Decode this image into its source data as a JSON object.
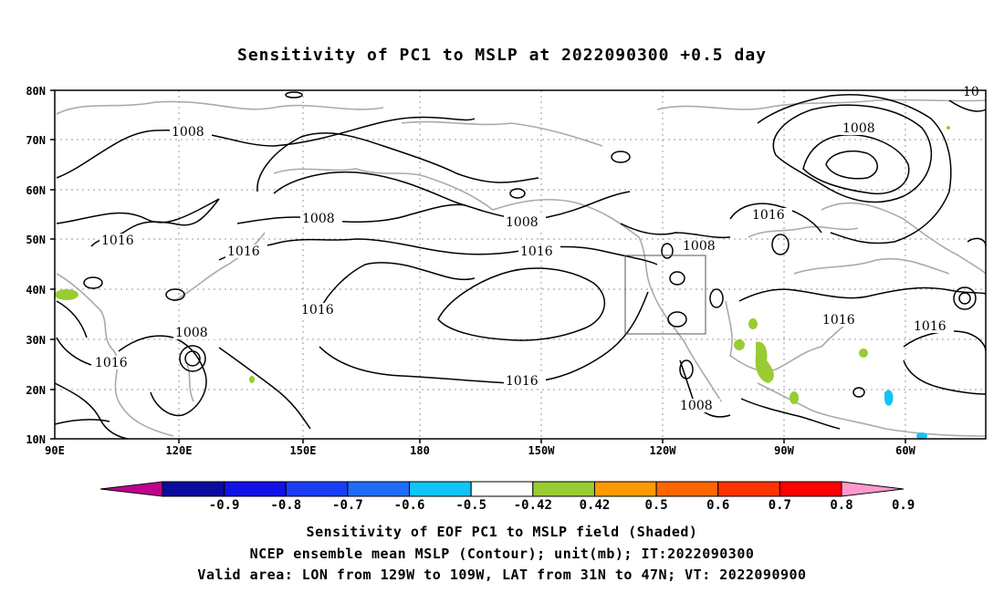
{
  "title": "Sensitivity of PC1 to MSLP at 2022090300 +0.5 day",
  "lat_labels": [
    "80N",
    "70N",
    "60N",
    "50N",
    "40N",
    "30N",
    "20N",
    "10N"
  ],
  "lon_labels": [
    "90E",
    "120E",
    "150E",
    "180",
    "150W",
    "120W",
    "90W",
    "60W"
  ],
  "contour_labels": [
    "1008",
    "1008",
    "1008",
    "1016",
    "1016",
    "1008",
    "1016",
    "1016",
    "1008",
    "1016",
    "1016",
    "1016",
    "1008",
    "1016",
    "1016",
    "10"
  ],
  "colorbar": {
    "colors": [
      "#c0008f",
      "#0b0b9e",
      "#1111e8",
      "#1a3df5",
      "#1f6cf7",
      "#10c4f6",
      "#ffffff",
      "#99cc33",
      "#ff9900",
      "#ff6600",
      "#ff3300",
      "#ff0000",
      "#ff99cc"
    ],
    "ticks": [
      "-0.9",
      "-0.8",
      "-0.7",
      "-0.6",
      "-0.5",
      "-0.42",
      "0.42",
      "0.5",
      "0.6",
      "0.7",
      "0.8",
      "0.9"
    ]
  },
  "caption": {
    "line1": "Sensitivity of EOF PC1 to MSLP field (Shaded)",
    "line2": "NCEP ensemble mean MSLP (Contour); unit(mb); IT:2022090300",
    "line3": "Valid area: LON from 129W to 109W, LAT from 31N to 47N; VT: 2022090900"
  },
  "valid_area": {
    "lon_from": "129W",
    "lon_to": "109W",
    "lat_from": "31N",
    "lat_to": "47N"
  }
}
